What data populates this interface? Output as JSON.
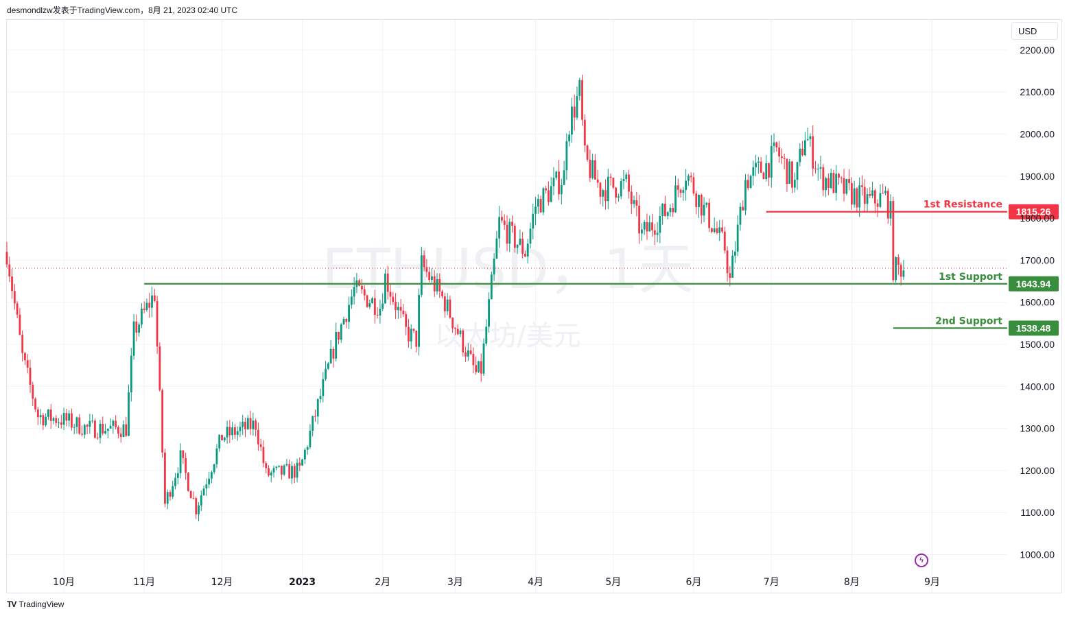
{
  "header": {
    "attribution": "desmondlzw发表于TradingView.com，8月 21, 2023 02:40 UTC"
  },
  "footer": {
    "logo_text": "TV",
    "brand": "TradingView"
  },
  "watermark": {
    "symbol": "ETHUSD，1天",
    "name": "以太坊/美元"
  },
  "currency_button": "USD",
  "colors": {
    "up": "#089981",
    "down": "#f23645",
    "resistance": "#f23645",
    "support": "#388e3c",
    "grid": "#f0f3fa",
    "last_price_line": "#f23645",
    "event": "#9c27b0"
  },
  "icons": {
    "event_marker": "flash-icon"
  },
  "chart_data": {
    "type": "candlestick",
    "symbol": "ETHUSD",
    "interval": "1天",
    "currency": "USD",
    "ylim": [
      950,
      2230
    ],
    "y_ticks": [
      "2200.00",
      "2100.00",
      "2000.00",
      "1900.00",
      "1800.00",
      "1700.00",
      "1600.00",
      "1500.00",
      "1400.00",
      "1300.00",
      "1200.00",
      "1100.00",
      "1000.00"
    ],
    "x_ticks": [
      "10月",
      "11月",
      "12月",
      "2023",
      "2月",
      "3月",
      "4月",
      "5月",
      "6月",
      "7月",
      "8月",
      "9月"
    ],
    "x_range": [
      "2022-09-09",
      "2023-09-12"
    ],
    "last_price": 1681,
    "levels": [
      {
        "name": "1st Resistance",
        "value": 1815.26,
        "value_label": "1815.26",
        "type": "resistance",
        "from": "2023-06-29"
      },
      {
        "name": "1st Support",
        "value": 1643.94,
        "value_label": "1643.94",
        "type": "support",
        "from": "2022-11-01"
      },
      {
        "name": "2nd Support",
        "value": 1538.48,
        "value_label": "1538.48",
        "type": "support",
        "from": "2023-08-17"
      }
    ],
    "anchors": [
      [
        "2022-09-09",
        1720
      ],
      [
        "2022-09-15",
        1470
      ],
      [
        "2022-09-21",
        1330
      ],
      [
        "2022-10-01",
        1320
      ],
      [
        "2022-10-10",
        1300
      ],
      [
        "2022-10-25",
        1300
      ],
      [
        "2022-10-28",
        1530
      ],
      [
        "2022-11-05",
        1620
      ],
      [
        "2022-11-09",
        1120
      ],
      [
        "2022-11-15",
        1230
      ],
      [
        "2022-11-21",
        1110
      ],
      [
        "2022-12-01",
        1280
      ],
      [
        "2022-12-14",
        1310
      ],
      [
        "2022-12-18",
        1190
      ],
      [
        "2022-12-31",
        1200
      ],
      [
        "2023-01-14",
        1510
      ],
      [
        "2023-01-21",
        1630
      ],
      [
        "2023-01-31",
        1590
      ],
      [
        "2023-02-02",
        1660
      ],
      [
        "2023-02-10",
        1530
      ],
      [
        "2023-02-14",
        1510
      ],
      [
        "2023-02-16",
        1690
      ],
      [
        "2023-02-25",
        1600
      ],
      [
        "2023-03-09",
        1430
      ],
      [
        "2023-03-11",
        1440
      ],
      [
        "2023-03-18",
        1790
      ],
      [
        "2023-03-28",
        1720
      ],
      [
        "2023-04-01",
        1830
      ],
      [
        "2023-04-12",
        1900
      ],
      [
        "2023-04-13",
        2010
      ],
      [
        "2023-04-18",
        2100
      ],
      [
        "2023-04-20",
        1940
      ],
      [
        "2023-04-26",
        1870
      ],
      [
        "2023-05-06",
        1880
      ],
      [
        "2023-05-12",
        1760
      ],
      [
        "2023-05-22",
        1820
      ],
      [
        "2023-05-29",
        1910
      ],
      [
        "2023-06-05",
        1820
      ],
      [
        "2023-06-13",
        1730
      ],
      [
        "2023-06-15",
        1650
      ],
      [
        "2023-06-21",
        1890
      ],
      [
        "2023-06-30",
        1930
      ],
      [
        "2023-07-03",
        1960
      ],
      [
        "2023-07-10",
        1880
      ],
      [
        "2023-07-14",
        2000
      ],
      [
        "2023-07-20",
        1900
      ],
      [
        "2023-07-31",
        1860
      ],
      [
        "2023-08-08",
        1840
      ],
      [
        "2023-08-14",
        1850
      ],
      [
        "2023-08-16",
        1810
      ],
      [
        "2023-08-17",
        1680
      ],
      [
        "2023-08-21",
        1681
      ]
    ]
  }
}
